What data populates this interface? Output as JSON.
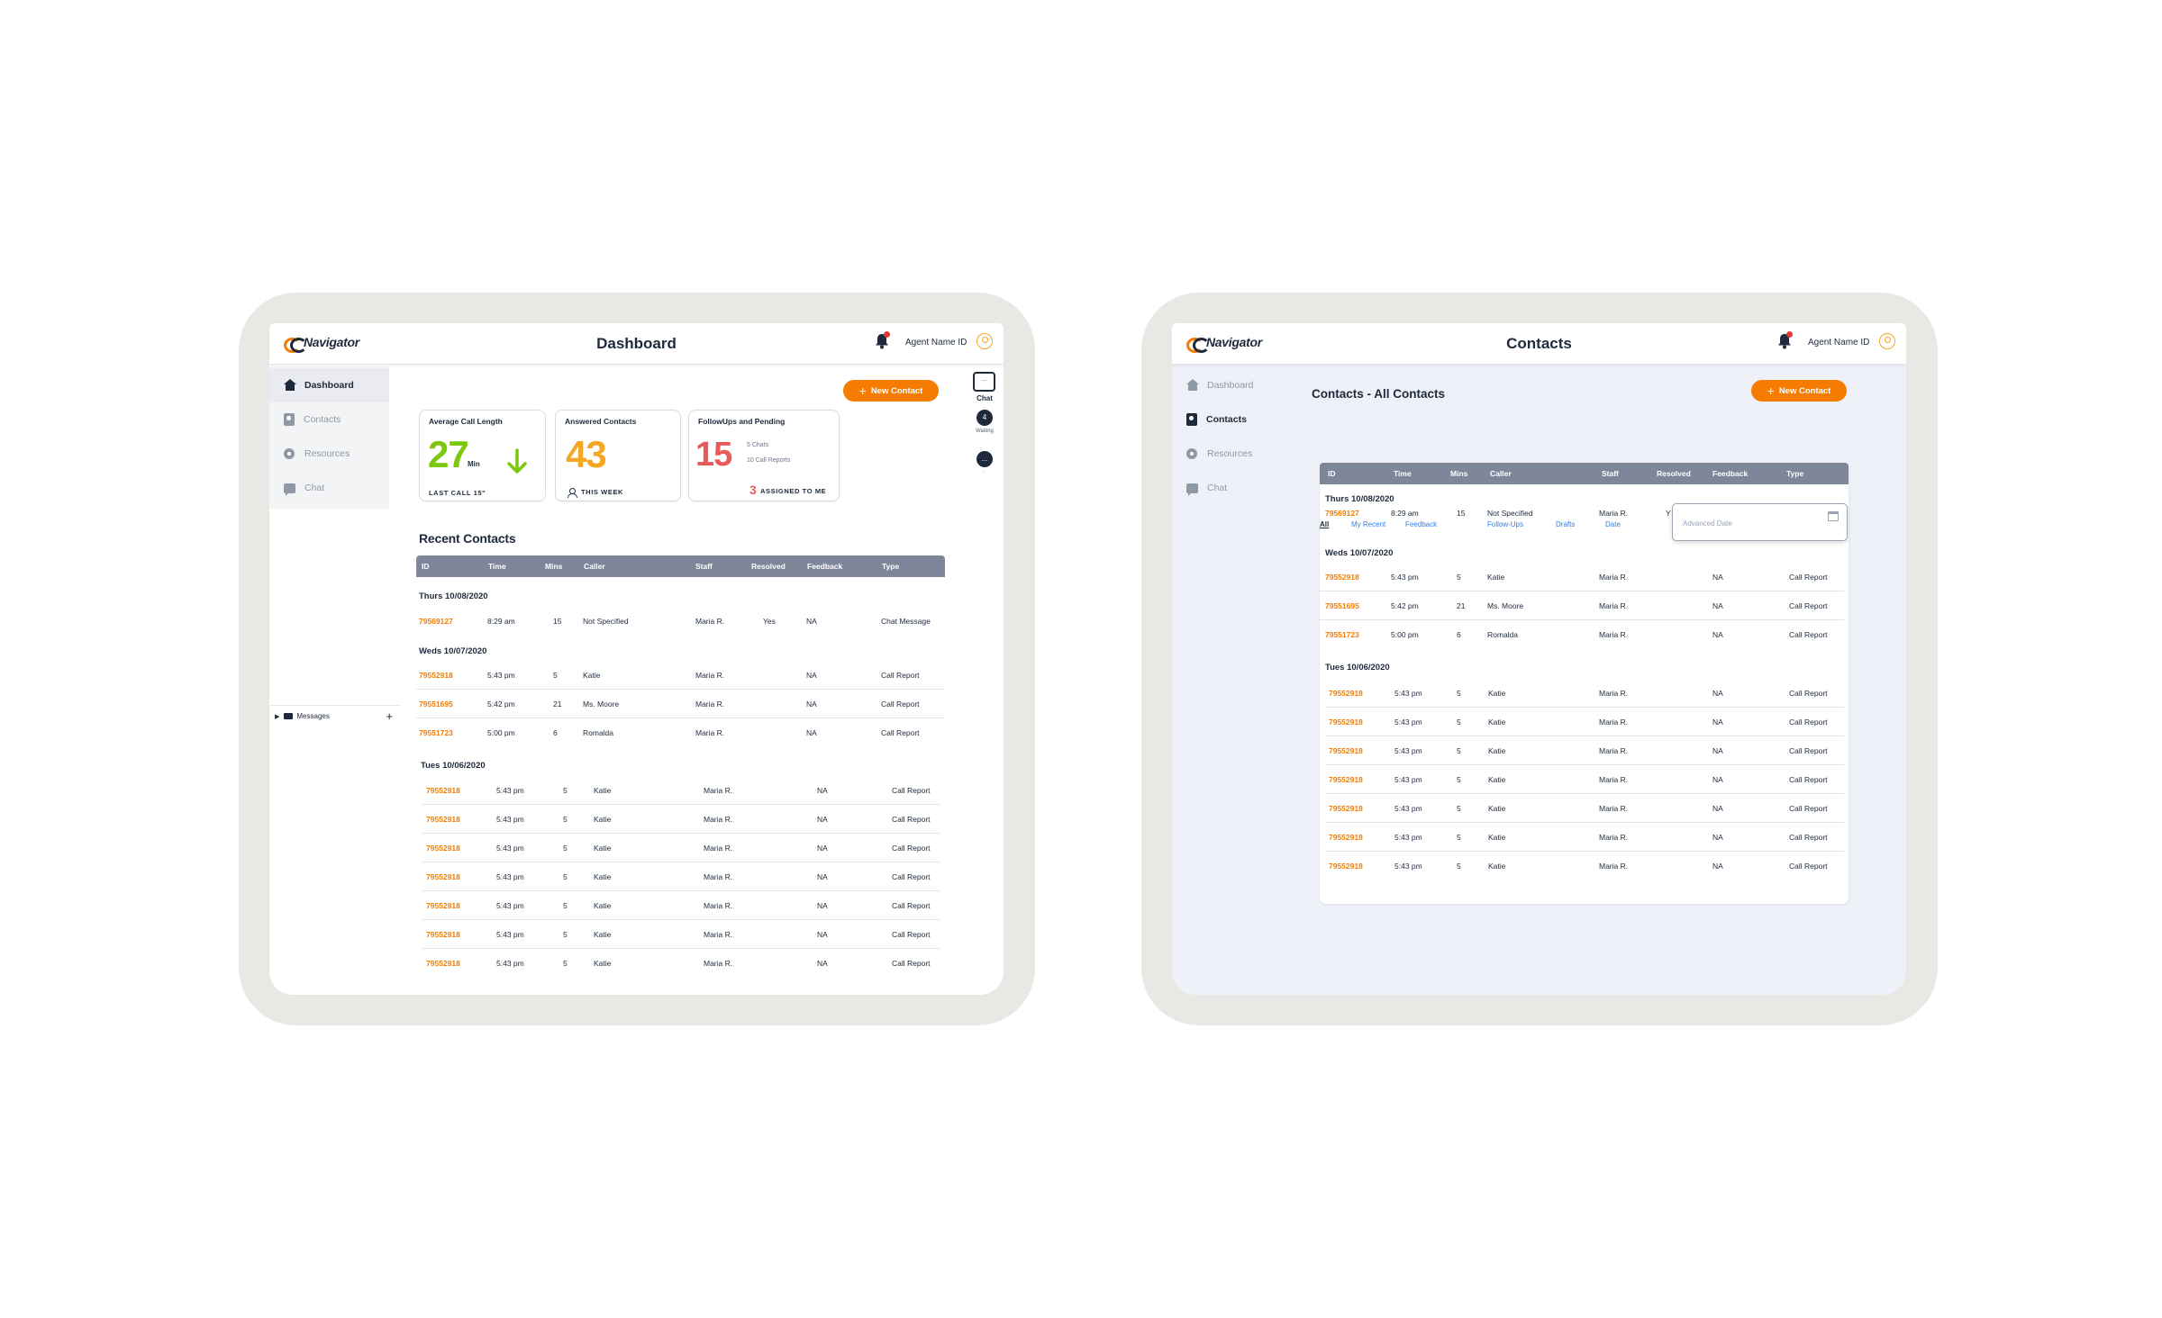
{
  "brand": {
    "logo_text": "Navigator",
    "accent": "#f57c00",
    "dark": "#1e2a3c",
    "table_header": "#7d8799"
  },
  "dashboard": {
    "header": {
      "title": "Dashboard",
      "agent": "Agent Name ID"
    },
    "sidebar": [
      {
        "label": "Dashboard",
        "icon": "home-icon",
        "active": true
      },
      {
        "label": "Contacts",
        "icon": "contacts-icon",
        "active": false
      },
      {
        "label": "Resources",
        "icon": "resources-icon",
        "active": false
      },
      {
        "label": "Chat",
        "icon": "chat-icon",
        "active": false
      }
    ],
    "messages_label": "Messages",
    "new_contact": "New Contact",
    "rail": {
      "chat_box": "...",
      "chat_label": "Chat",
      "waiting_count": "4",
      "waiting_label": "Waiting",
      "agent_count": "...",
      "agent_label": "."
    },
    "cards": {
      "avg": {
        "title": "Average Call Length",
        "value": "27",
        "unit": "Min",
        "foot": "LAST CALL 15\"",
        "color": "#7cc80c"
      },
      "answered": {
        "title": "Answered Contacts",
        "value": "43",
        "foot": "THIS WEEK",
        "color": "#f5a623"
      },
      "followups": {
        "title": "FollowUps and Pending",
        "value": "15",
        "line1": "5 Chats",
        "line2": "10 Call Reports",
        "assigned_num": "3",
        "assigned_label": "ASSIGNED TO ME",
        "color": "#e85a5a"
      }
    },
    "recent_title": "Recent Contacts",
    "columns": [
      "ID",
      "Time",
      "Mins",
      "Caller",
      "Staff",
      "Resolved",
      "Feedback",
      "Type"
    ],
    "groups": [
      {
        "label": "Thurs 10/08/2020",
        "rows": [
          {
            "id": "79569127",
            "time": "8:29 am",
            "mins": "15",
            "caller": "Not Specified",
            "staff": "Maria R.",
            "resolved": "Yes",
            "feedback": "NA",
            "type": "Chat Message"
          }
        ]
      },
      {
        "label": "Weds 10/07/2020",
        "rows": [
          {
            "id": "79552918",
            "time": "5:43 pm",
            "mins": "5",
            "caller": "Katie",
            "staff": "Maria R.",
            "resolved": "",
            "feedback": "NA",
            "type": "Call Report"
          },
          {
            "id": "79551695",
            "time": "5:42 pm",
            "mins": "21",
            "caller": "Ms. Moore",
            "staff": "Maria R.",
            "resolved": "",
            "feedback": "NA",
            "type": "Call Report"
          },
          {
            "id": "79551723",
            "time": "5:00 pm",
            "mins": "6",
            "caller": "Romalda",
            "staff": "Maria R.",
            "resolved": "",
            "feedback": "NA",
            "type": "Call Report"
          }
        ]
      },
      {
        "label": "Tues 10/06/2020",
        "rows": [
          {
            "id": "79552918",
            "time": "5:43 pm",
            "mins": "5",
            "caller": "Katie",
            "staff": "Maria R.",
            "resolved": "",
            "feedback": "NA",
            "type": "Call Report"
          },
          {
            "id": "79552918",
            "time": "5:43 pm",
            "mins": "5",
            "caller": "Katie",
            "staff": "Maria R.",
            "resolved": "",
            "feedback": "NA",
            "type": "Call Report"
          },
          {
            "id": "79552918",
            "time": "5:43 pm",
            "mins": "5",
            "caller": "Katie",
            "staff": "Maria R.",
            "resolved": "",
            "feedback": "NA",
            "type": "Call Report"
          },
          {
            "id": "79552918",
            "time": "5:43 pm",
            "mins": "5",
            "caller": "Katie",
            "staff": "Maria R.",
            "resolved": "",
            "feedback": "NA",
            "type": "Call Report"
          },
          {
            "id": "79552918",
            "time": "5:43 pm",
            "mins": "5",
            "caller": "Katie",
            "staff": "Maria R.",
            "resolved": "",
            "feedback": "NA",
            "type": "Call Report"
          },
          {
            "id": "79552918",
            "time": "5:43 pm",
            "mins": "5",
            "caller": "Katie",
            "staff": "Maria R.",
            "resolved": "",
            "feedback": "NA",
            "type": "Call Report"
          },
          {
            "id": "79552918",
            "time": "5:43 pm",
            "mins": "5",
            "caller": "Katie",
            "staff": "Maria R.",
            "resolved": "",
            "feedback": "NA",
            "type": "Call Report"
          }
        ]
      }
    ]
  },
  "contacts": {
    "header": {
      "title": "Contacts",
      "agent": "Agent Name ID"
    },
    "sidebar": [
      {
        "label": "Dashboard",
        "icon": "home-icon",
        "active": false
      },
      {
        "label": "Contacts",
        "icon": "contacts-icon",
        "active": true
      },
      {
        "label": "Resources",
        "icon": "resources-icon",
        "active": false
      },
      {
        "label": "Chat",
        "icon": "chat-icon",
        "active": false
      }
    ],
    "heading": "Contacts - All Contacts",
    "new_contact": "New Contact",
    "filters": [
      {
        "label": "All",
        "active": true
      },
      {
        "label": "My Recent",
        "active": false
      },
      {
        "label": "Feedback",
        "active": false
      },
      {
        "label": "Follow-Ups",
        "active": false
      },
      {
        "label": "Drafts",
        "active": false
      },
      {
        "label": "Date",
        "active": false
      }
    ],
    "advanced_date_placeholder": "Advanced Date",
    "columns": [
      "ID",
      "Time",
      "Mins",
      "Caller",
      "Staff",
      "Resolved",
      "Feedback",
      "Type"
    ],
    "groups": [
      {
        "label": "Thurs 10/08/2020",
        "rows": [
          {
            "id": "79569127",
            "time": "8:29 am",
            "mins": "15",
            "caller": "Not Specified",
            "staff": "Maria R.",
            "resolved": "Y",
            "feedback": "",
            "type": ""
          }
        ]
      },
      {
        "label": "Weds 10/07/2020",
        "rows": [
          {
            "id": "79552918",
            "time": "5:43 pm",
            "mins": "5",
            "caller": "Katie",
            "staff": "Maria R.",
            "resolved": "",
            "feedback": "NA",
            "type": "Call Report"
          },
          {
            "id": "79551695",
            "time": "5:42 pm",
            "mins": "21",
            "caller": "Ms. Moore",
            "staff": "Maria R.",
            "resolved": "",
            "feedback": "NA",
            "type": "Call Report"
          },
          {
            "id": "79551723",
            "time": "5:00 pm",
            "mins": "6",
            "caller": "Romalda",
            "staff": "Maria R.",
            "resolved": "",
            "feedback": "NA",
            "type": "Call Report"
          }
        ]
      },
      {
        "label": "Tues 10/06/2020",
        "rows": [
          {
            "id": "79552918",
            "time": "5:43 pm",
            "mins": "5",
            "caller": "Katie",
            "staff": "Maria R.",
            "resolved": "",
            "feedback": "NA",
            "type": "Call Report"
          },
          {
            "id": "79552918",
            "time": "5:43 pm",
            "mins": "5",
            "caller": "Katie",
            "staff": "Maria R.",
            "resolved": "",
            "feedback": "NA",
            "type": "Call Report"
          },
          {
            "id": "79552918",
            "time": "5:43 pm",
            "mins": "5",
            "caller": "Katie",
            "staff": "Maria R.",
            "resolved": "",
            "feedback": "NA",
            "type": "Call Report"
          },
          {
            "id": "79552918",
            "time": "5:43 pm",
            "mins": "5",
            "caller": "Katie",
            "staff": "Maria R.",
            "resolved": "",
            "feedback": "NA",
            "type": "Call Report"
          },
          {
            "id": "79552918",
            "time": "5:43 pm",
            "mins": "5",
            "caller": "Katie",
            "staff": "Maria R.",
            "resolved": "",
            "feedback": "NA",
            "type": "Call Report"
          },
          {
            "id": "79552918",
            "time": "5:43 pm",
            "mins": "5",
            "caller": "Katie",
            "staff": "Maria R.",
            "resolved": "",
            "feedback": "NA",
            "type": "Call Report"
          },
          {
            "id": "79552918",
            "time": "5:43 pm",
            "mins": "5",
            "caller": "Katie",
            "staff": "Maria R.",
            "resolved": "",
            "feedback": "NA",
            "type": "Call Report"
          }
        ]
      }
    ]
  }
}
